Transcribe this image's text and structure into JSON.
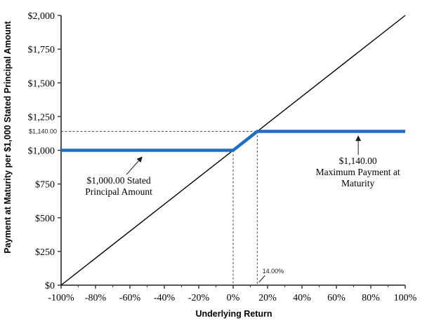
{
  "chart_data": {
    "type": "line",
    "title": "",
    "xlabel": "Underlying Return",
    "ylabel": "Payment at Maturity per $1,000 Stated Principal Amount",
    "xlim": [
      -100,
      100
    ],
    "ylim": [
      0,
      2000
    ],
    "grid": false,
    "legend": "none",
    "x_axis": {
      "tick_values": [
        -100,
        -80,
        -60,
        -40,
        -20,
        0,
        20,
        40,
        60,
        80,
        100
      ],
      "tick_labels": [
        "-100%",
        "-80%",
        "-60%",
        "-40%",
        "-20%",
        "0%",
        "20%",
        "40%",
        "60%",
        "80%",
        "100%"
      ],
      "minor_tick_values": [
        -90,
        -70,
        -50,
        -30,
        -10,
        10,
        30,
        50,
        70,
        90
      ]
    },
    "y_axis": {
      "tick_values": [
        0,
        250,
        500,
        750,
        1000,
        1250,
        1500,
        1750,
        2000
      ],
      "tick_labels": [
        "$0",
        "$250",
        "$500",
        "$750",
        "$1,000",
        "$1,250",
        "$1,500",
        "$1,750",
        "$2,000"
      ]
    },
    "special_y_label": {
      "value": 1140,
      "label": "$1,140.00"
    },
    "series": [
      {
        "name": "underlying-return-line",
        "color": "#000000",
        "width": 1.4,
        "points": [
          [
            -100,
            0
          ],
          [
            100,
            2000
          ]
        ]
      },
      {
        "name": "payment-at-maturity-line",
        "color": "#1F6FC0",
        "width": 4.5,
        "points": [
          [
            -100,
            1000
          ],
          [
            0,
            1000
          ],
          [
            14,
            1140
          ],
          [
            100,
            1140
          ]
        ]
      }
    ],
    "reference_lines": [
      {
        "name": "max-payment-dashed-horizontal",
        "from": [
          -100,
          1140
        ],
        "to": [
          14,
          1140
        ]
      },
      {
        "name": "zero-return-dashed-vertical",
        "from": [
          0,
          1000
        ],
        "to": [
          0,
          0
        ]
      },
      {
        "name": "cap-return-dashed-vertical",
        "from": [
          14,
          1140
        ],
        "to": [
          14,
          0
        ]
      }
    ],
    "annotations": [
      {
        "name": "stated-principal-annotation",
        "lines": [
          "$1,000.00 Stated",
          "Principal Amount"
        ],
        "align": "center",
        "font": "serif",
        "anchor": [
          -66.5,
          753
        ],
        "arrow": {
          "from": [
            -62,
            820
          ],
          "to": [
            -53,
            950
          ],
          "head": true
        }
      },
      {
        "name": "max-payment-annotation",
        "lines": [
          "$1,140.00",
          "Maximum Payment at",
          "Maturity"
        ],
        "align": "center",
        "font": "serif",
        "anchor": [
          72.5,
          899
        ],
        "arrow": {
          "from": [
            72.7,
            966
          ],
          "to": [
            72.7,
            1105
          ],
          "head": true
        }
      },
      {
        "name": "cap-return-label",
        "lines": [
          "14.00%"
        ],
        "align": "left",
        "font": "sans-small",
        "anchor": [
          17,
          88
        ],
        "arrow": {
          "from": [
            18.5,
            72
          ],
          "to": [
            15,
            22
          ],
          "head": false
        }
      }
    ]
  }
}
